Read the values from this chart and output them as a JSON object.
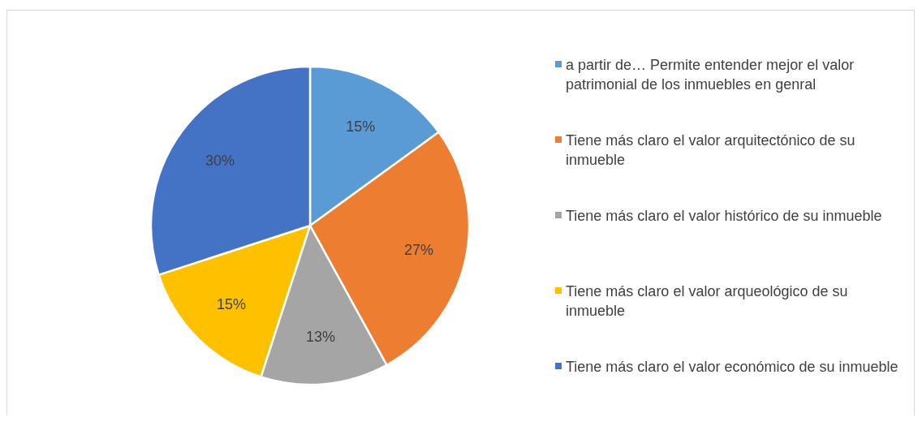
{
  "chart_data": {
    "type": "pie",
    "categories": [
      "a partir de… Permite entender mejor el valor patrimonial de los inmuebles en genral",
      "Tiene más claro el valor arquitectónico de su inmueble",
      "Tiene más claro el valor histórico de su inmueble",
      "Tiene más claro el valor arqueológico de su inmueble",
      "Tiene más claro el valor económico de su inmueble"
    ],
    "values": [
      15,
      27,
      13,
      15,
      30
    ],
    "colors": [
      "#5b9bd5",
      "#ed7d31",
      "#a5a5a5",
      "#ffc000",
      "#4472c4"
    ],
    "value_labels": [
      "15%",
      "27%",
      "13%",
      "15%",
      "30%"
    ],
    "legend": "right"
  }
}
